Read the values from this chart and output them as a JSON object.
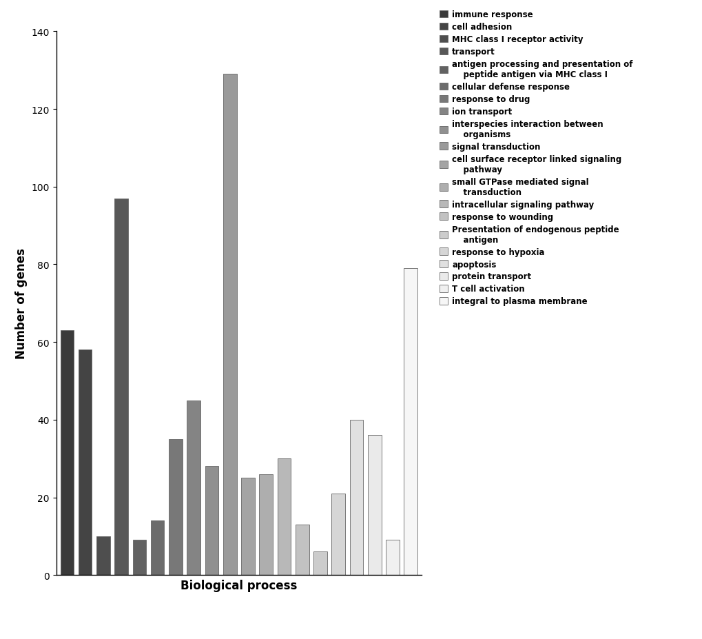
{
  "categories": [
    "immune response",
    "cell adhesion",
    "MHC class I receptor activity",
    "transport",
    "antigen processing and presentation of\npeptide antigen via MHC class I",
    "cellular defense response",
    "response to drug",
    "ion transport",
    "interspecies interaction between\norganisms",
    "signal transduction",
    "cell surface receptor linked signaling\npathway",
    "small GTPase mediated signal\ntransduction",
    "intracellular signaling pathway",
    "response to wounding",
    "Presentation of endogenous peptide\nantigen",
    "response to hypoxia",
    "apoptosis",
    "protein transport",
    "T cell activation",
    "integral to plasma membrane"
  ],
  "values": [
    63,
    58,
    10,
    97,
    9,
    14,
    35,
    45,
    28,
    129,
    25,
    26,
    30,
    13,
    6,
    21,
    40,
    36,
    9,
    79
  ],
  "colors": [
    "#3a3a3a",
    "#444444",
    "#4e4e4e",
    "#585858",
    "#626262",
    "#6c6c6c",
    "#787878",
    "#848484",
    "#909090",
    "#9a9a9a",
    "#a4a4a4",
    "#aeaeae",
    "#b8b8b8",
    "#c2c2c2",
    "#cccccc",
    "#d6d6d6",
    "#e0e0e0",
    "#eaeaea",
    "#f0f0f0",
    "#f6f6f6"
  ],
  "legend_labels": [
    "immune response",
    "cell adhesion",
    "MHC class I receptor activity",
    "transport",
    "antigen processing and presentation of\n    peptide antigen via MHC class I",
    "cellular defense response",
    "response to drug",
    "ion transport",
    "interspecies interaction between\n    organisms",
    "signal transduction",
    "cell surface receptor linked signaling\n    pathway",
    "small GTPase mediated signal\n    transduction",
    "intracellular signaling pathway",
    "response to wounding",
    "Presentation of endogenous peptide\n    antigen",
    "response to hypoxia",
    "apoptosis",
    "protein transport",
    "T cell activation",
    "integral to plasma membrane"
  ],
  "ylabel": "Number of genes",
  "xlabel": "Biological process",
  "ylim": [
    0,
    140
  ],
  "yticks": [
    0,
    20,
    40,
    60,
    80,
    100,
    120,
    140
  ],
  "background_color": "#ffffff",
  "axis_label_fontsize": 12,
  "legend_fontsize": 8.5
}
